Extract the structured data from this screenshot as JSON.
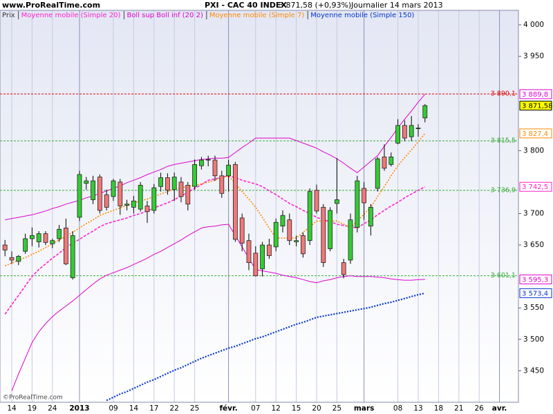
{
  "header": {
    "site": "www.ProRealTime.com",
    "title": "PXI - CAC 40 INDEX",
    "quote": "3 871,58 (+0,93%)",
    "period": "Journalier  14 mars 2013"
  },
  "footer": {
    "watermark": "©ProRealTime.com"
  },
  "chart_data": {
    "type": "candlestick",
    "categories": [
      null,
      "14",
      null,
      null,
      "19",
      null,
      null,
      "24",
      null,
      null,
      null,
      "2013",
      null,
      null,
      null,
      null,
      "09",
      null,
      null,
      "14",
      null,
      null,
      "17",
      null,
      null,
      "22",
      null,
      null,
      "25",
      null,
      null,
      null,
      null,
      "févr.",
      null,
      null,
      null,
      "07",
      null,
      null,
      "12",
      null,
      null,
      "15",
      null,
      null,
      "20",
      null,
      null,
      "25",
      null,
      null,
      null,
      "mars",
      null,
      null,
      null,
      null,
      "08",
      null,
      null,
      "13",
      null,
      null,
      "18",
      null,
      null,
      "21",
      null,
      null,
      "26",
      null,
      null,
      "avr."
    ],
    "ylim": [
      3400,
      4023
    ],
    "yticks": [
      {
        "value": 4000,
        "label": "4 000"
      },
      {
        "value": 3950,
        "label": "3 950"
      },
      {
        "value": 3800,
        "label": "3 800"
      },
      {
        "value": 3700,
        "label": "3 700"
      },
      {
        "value": 3650,
        "label": "3 650"
      },
      {
        "value": 3550,
        "label": "3 550"
      },
      {
        "value": 3500,
        "label": "3 500"
      },
      {
        "value": 3450,
        "label": "3 450"
      }
    ],
    "candles": {
      "name": "Prix",
      "up_color": "#33cc33",
      "down_color": "#f07878",
      "label_color": "#ffff00",
      "last_label": "3 871,58",
      "open": [
        3650,
        3630,
        3624,
        3640,
        3660,
        3655,
        3668,
        3652,
        3660,
        3677,
        3598,
        3694,
        3748,
        3722,
        3758,
        3730,
        3727,
        3750,
        3713,
        3710,
        3707,
        3712,
        3705,
        3743,
        3757,
        3738,
        3750,
        3745,
        3743,
        3776,
        3785,
        3785,
        3760,
        3760,
        3778,
        3693,
        3657,
        3637,
        3612,
        3650,
        3647,
        3680,
        3690,
        3655,
        3665,
        3657,
        3737,
        3710,
        3644,
        3716,
        3622,
        3626,
        3678,
        3740,
        3680,
        3740,
        3790,
        3778,
        3812,
        3840,
        3822,
        3835,
        3852,
        null,
        null,
        null,
        null,
        null,
        null,
        null,
        null,
        null,
        null,
        null
      ],
      "high": [
        3658,
        3640,
        3634,
        3668,
        3678,
        3672,
        3672,
        3660,
        3682,
        3692,
        3672,
        3768,
        3758,
        3760,
        3762,
        3738,
        3755,
        3755,
        3722,
        3728,
        3750,
        3720,
        3747,
        3765,
        3764,
        3765,
        3758,
        3750,
        3786,
        3790,
        3792,
        3792,
        3768,
        3785,
        3782,
        3700,
        3668,
        3648,
        3655,
        3660,
        3692,
        3705,
        3700,
        3665,
        3670,
        3740,
        3746,
        3715,
        3710,
        3788,
        3628,
        3700,
        3760,
        3750,
        3715,
        3790,
        3810,
        3797,
        3850,
        3848,
        3855,
        3842,
        3874,
        null,
        null,
        null,
        null,
        null,
        null,
        null,
        null,
        null,
        null,
        null
      ],
      "low": [
        3632,
        3620,
        3618,
        3636,
        3648,
        3646,
        3650,
        3645,
        3655,
        3618,
        3595,
        3688,
        3738,
        3715,
        3700,
        3705,
        3720,
        3698,
        3705,
        3700,
        3703,
        3685,
        3700,
        3735,
        3730,
        3720,
        3718,
        3705,
        3738,
        3770,
        3775,
        3752,
        3725,
        3735,
        3655,
        3640,
        3610,
        3600,
        3600,
        3628,
        3640,
        3670,
        3650,
        3648,
        3630,
        3650,
        3700,
        3615,
        3640,
        3700,
        3597,
        3620,
        3670,
        3690,
        3665,
        3735,
        3768,
        3775,
        3810,
        3815,
        3815,
        3822,
        3845,
        null,
        null,
        null,
        null,
        null,
        null,
        null,
        null,
        null,
        null,
        null
      ],
      "close": [
        3642,
        3626,
        3632,
        3660,
        3665,
        3668,
        3654,
        3657,
        3675,
        3620,
        3665,
        3762,
        3752,
        3752,
        3705,
        3710,
        3752,
        3712,
        3715,
        3720,
        3745,
        3703,
        3741,
        3757,
        3737,
        3758,
        3727,
        3715,
        3778,
        3785,
        3786,
        3760,
        3732,
        3777,
        3659,
        3653,
        3622,
        3601,
        3650,
        3633,
        3686,
        3697,
        3657,
        3657,
        3636,
        3735,
        3704,
        3622,
        3705,
        3722,
        3603,
        3690,
        3752,
        3717,
        3710,
        3787,
        3772,
        3790,
        3840,
        3820,
        3840,
        3836,
        3871.58,
        null,
        null,
        null,
        null,
        null,
        null,
        null,
        null,
        null,
        null,
        null
      ]
    },
    "series": [
      {
        "name": "Moyenne mobile (Simple 20)",
        "color": "#ff22cc",
        "style": "dashed",
        "last_label": "3 742,5",
        "values": [
          3540,
          3555,
          3570,
          3585,
          3600,
          3611,
          3620,
          3629,
          3637,
          3646,
          3653,
          3659,
          3666,
          3672,
          3679,
          3684,
          3687,
          3690,
          3693,
          3697,
          3700,
          3704,
          3709,
          3713,
          3717,
          3722,
          3728,
          3734,
          3740,
          3746,
          3753,
          3755,
          3758,
          3760,
          3757,
          3753,
          3750,
          3747,
          3743,
          3736,
          3730,
          3723,
          3716,
          3711,
          3705,
          3700,
          3694,
          3690,
          3687,
          3683,
          3681,
          3679,
          3677,
          3684,
          3690,
          3698,
          3705,
          3712,
          3718,
          3725,
          3731,
          3737,
          3742.5,
          null,
          null,
          null,
          null,
          null,
          null,
          null,
          null,
          null,
          null,
          null
        ]
      },
      {
        "name": "Boll sup Boll inf (20 2)",
        "color": "#dd00cc",
        "style": "solid",
        "upper_last_label": "3 889,8",
        "lower_last_label": "3 595,3",
        "upper": [
          3690,
          3692,
          3694,
          3696,
          3698,
          3701,
          3704,
          3708,
          3711,
          3715,
          3718,
          3721,
          3725,
          3728,
          3732,
          3736,
          3740,
          3744,
          3749,
          3753,
          3757,
          3762,
          3766,
          3770,
          3775,
          3778,
          3780,
          3782,
          3784,
          3786,
          3787,
          3788,
          3788,
          3789,
          3797,
          3805,
          3812,
          3820,
          3820,
          3820,
          3820,
          3820,
          3820,
          3816,
          3812,
          3808,
          3804,
          3798,
          3793,
          3787,
          3780,
          3772,
          3765,
          3774,
          3783,
          3792,
          3807,
          3821,
          3836,
          3850,
          3863,
          3877,
          3889.8,
          null,
          null,
          null,
          null,
          null,
          null,
          null,
          null,
          null,
          null,
          null
        ],
        "lower": [
          null,
          3418,
          3445,
          3470,
          3495,
          3512,
          3525,
          3536,
          3545,
          3553,
          3561,
          3570,
          3579,
          3588,
          3596,
          3602,
          3606,
          3610,
          3614,
          3619,
          3624,
          3629,
          3635,
          3640,
          3646,
          3652,
          3658,
          3665,
          3671,
          3677,
          3679,
          3680,
          3682,
          3683,
          3665,
          3647,
          3629,
          3611,
          3609,
          3607,
          3605,
          3602,
          3600,
          3598,
          3595,
          3592,
          3590,
          3593,
          3595,
          3598,
          3600,
          3601,
          3600,
          3600,
          3600,
          3599,
          3598,
          3596,
          3595,
          3594,
          3594,
          3595,
          3595.3,
          null,
          null,
          null,
          null,
          null,
          null,
          null,
          null,
          null,
          null,
          null
        ]
      },
      {
        "name": "Moyenne mobile (Simple 7)",
        "color": "#ff8800",
        "style": "dotted",
        "last_label": "3 827,4",
        "values": [
          3617,
          3621,
          3626,
          3630,
          3635,
          3640,
          3646,
          3652,
          3658,
          3664,
          3670,
          3677,
          3684,
          3690,
          3697,
          3701,
          3705,
          3709,
          3713,
          3717,
          3720,
          3723,
          3727,
          3731,
          3735,
          3739,
          3741,
          3743,
          3745,
          3747,
          3750,
          3753,
          3757,
          3760,
          3748,
          3735,
          3723,
          3710,
          3694,
          3677,
          3661,
          3661,
          3661,
          3661,
          3670,
          3679,
          3688,
          3688,
          3688,
          3688,
          3683,
          3677,
          3688,
          3699,
          3710,
          3727,
          3743,
          3760,
          3776,
          3789,
          3801,
          3814,
          3827.4,
          null,
          null,
          null,
          null,
          null,
          null,
          null,
          null,
          null,
          null,
          null
        ]
      },
      {
        "name": "Moyenne mobile (Simple 150)",
        "color": "#0033cc",
        "style": "heavy-dotted",
        "last_label": "3 573,4",
        "values": [
          null,
          null,
          null,
          null,
          null,
          null,
          null,
          null,
          null,
          null,
          null,
          null,
          null,
          null,
          null,
          3403,
          3408,
          3413,
          3417,
          3422,
          3427,
          3432,
          3436,
          3441,
          3446,
          3451,
          3455,
          3460,
          3465,
          3470,
          3474,
          3478,
          3482,
          3486,
          3489,
          3493,
          3497,
          3501,
          3504,
          3508,
          3512,
          3516,
          3520,
          3524,
          3527,
          3531,
          3535,
          3537,
          3539,
          3541,
          3543,
          3545,
          3547,
          3549,
          3551,
          3554,
          3557,
          3559,
          3562,
          3565,
          3568,
          3571,
          3573.4,
          null,
          null,
          null,
          null,
          null,
          null,
          null,
          null,
          null,
          null,
          null
        ]
      }
    ],
    "levels": [
      {
        "value": 3890.1,
        "label": "3 890,1",
        "color": "#dd0000"
      },
      {
        "value": 3815.5,
        "label": "3 815,5",
        "color": "#33aa33"
      },
      {
        "value": 3736.9,
        "label": "3 736,9",
        "color": "#33aa33"
      },
      {
        "value": 3601.1,
        "label": "3 601,1",
        "color": "#33aa33"
      }
    ]
  }
}
